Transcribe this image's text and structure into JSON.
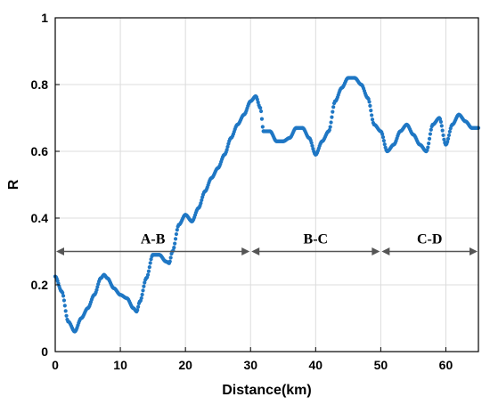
{
  "chart_data": {
    "type": "scatter",
    "title": "",
    "xlabel": "Distance(km)",
    "ylabel": "R",
    "xlim": [
      0,
      65
    ],
    "ylim": [
      0,
      1
    ],
    "x_ticks": [
      "0",
      "10",
      "20",
      "30",
      "40",
      "50",
      "60"
    ],
    "y_ticks": [
      "0",
      "0.2",
      "0.4",
      "0.6",
      "0.8",
      "1"
    ],
    "grid": true,
    "series_color": "#1f77c4",
    "x": [
      0,
      1,
      2,
      3,
      4,
      5,
      6,
      7,
      7.5,
      8,
      9,
      10,
      11,
      12,
      12.5,
      13,
      14,
      15,
      16,
      17,
      17.5,
      18,
      19,
      20,
      21,
      22,
      23,
      24,
      25,
      26,
      27,
      28,
      29,
      30,
      30.8,
      31.5,
      32,
      33,
      34,
      35,
      36,
      37,
      38,
      39,
      40,
      41,
      42,
      43,
      44,
      45,
      46,
      47,
      48,
      49,
      50,
      51,
      52,
      53,
      54,
      55,
      56,
      57,
      58,
      59,
      60,
      61,
      62,
      63,
      64,
      65
    ],
    "y": [
      0.225,
      0.18,
      0.09,
      0.06,
      0.1,
      0.13,
      0.17,
      0.22,
      0.23,
      0.22,
      0.19,
      0.17,
      0.16,
      0.13,
      0.12,
      0.15,
      0.22,
      0.29,
      0.29,
      0.27,
      0.265,
      0.3,
      0.38,
      0.41,
      0.39,
      0.43,
      0.48,
      0.52,
      0.55,
      0.59,
      0.64,
      0.68,
      0.71,
      0.75,
      0.765,
      0.73,
      0.66,
      0.66,
      0.63,
      0.63,
      0.64,
      0.67,
      0.67,
      0.64,
      0.59,
      0.63,
      0.66,
      0.75,
      0.79,
      0.82,
      0.82,
      0.8,
      0.76,
      0.68,
      0.66,
      0.6,
      0.62,
      0.66,
      0.68,
      0.65,
      0.62,
      0.6,
      0.68,
      0.7,
      0.62,
      0.68,
      0.71,
      0.69,
      0.67,
      0.67
    ],
    "segments": [
      {
        "label": "A-B",
        "from": 0,
        "to": 30,
        "y": 0.3
      },
      {
        "label": "B-C",
        "from": 30,
        "to": 50,
        "y": 0.3
      },
      {
        "label": "C-D",
        "from": 50,
        "to": 65,
        "y": 0.3
      }
    ]
  }
}
